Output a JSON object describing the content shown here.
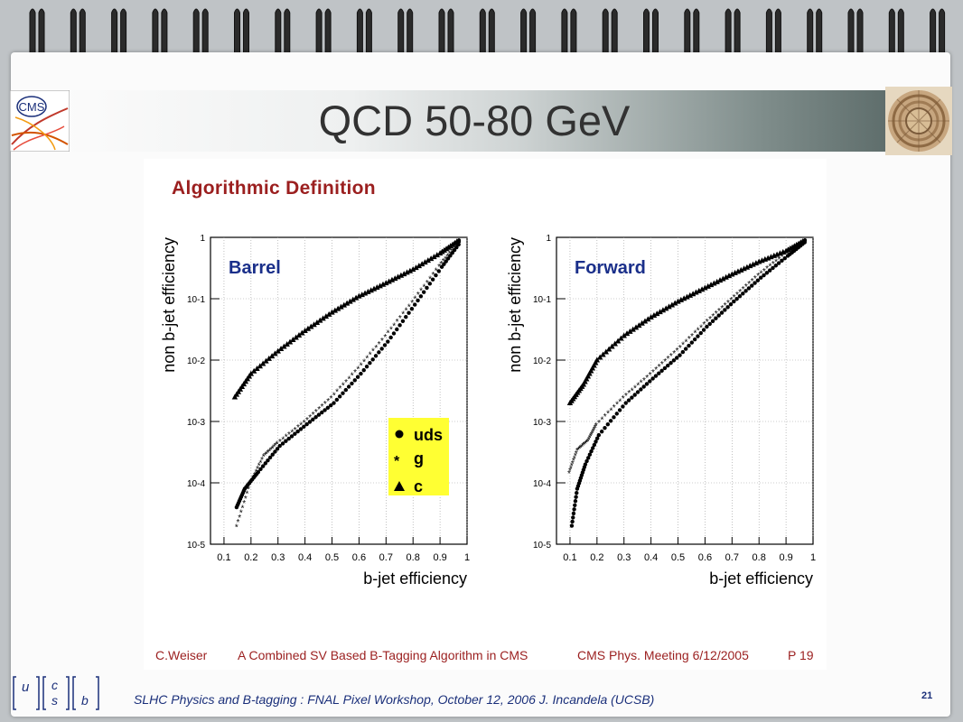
{
  "slide_title": "QCD 50-80 GeV",
  "heading": "Algorithmic Definition",
  "footer": {
    "author": "C.Weiser",
    "paper_title": "A Combined SV Based B-Tagging Algorithm in CMS",
    "meeting": "CMS Phys. Meeting 6/12/2005",
    "page": "P 19"
  },
  "bottom_text": "SLHC Physics and B-tagging : FNAL Pixel Workshop, October 12, 2006   J. Incandela (UCSB)",
  "slide_number": "21",
  "quark_symbols": {
    "u": "u",
    "c": "c",
    "s": "s",
    "b": "b"
  },
  "logo_text": "CMS",
  "legend": {
    "uds": "uds",
    "g": "g",
    "c": "c"
  },
  "chart_data": [
    {
      "type": "scatter",
      "panel_label": "Barrel",
      "xlabel": "b-jet efficiency",
      "ylabel": "non b-jet efficiency",
      "xlim": [
        0.05,
        1.0
      ],
      "ylim_log10": [
        -5,
        0
      ],
      "x_ticks": [
        "0.1",
        "0.2",
        "0.3",
        "0.4",
        "0.5",
        "0.6",
        "0.7",
        "0.8",
        "0.9",
        "1"
      ],
      "y_ticks": [
        "10-5",
        "10-4",
        "10-3",
        "10-2",
        "10-1",
        "1"
      ],
      "grid": true,
      "legend_position": "bottom-right",
      "series": [
        {
          "name": "c",
          "marker": "triangle",
          "x": [
            0.14,
            0.2,
            0.3,
            0.4,
            0.5,
            0.6,
            0.7,
            0.8,
            0.9,
            0.97
          ],
          "y": [
            0.0025,
            0.006,
            0.014,
            0.03,
            0.06,
            0.11,
            0.18,
            0.3,
            0.55,
            0.9
          ]
        },
        {
          "name": "g",
          "marker": "star",
          "x": [
            0.15,
            0.2,
            0.25,
            0.3,
            0.4,
            0.5,
            0.6,
            0.7,
            0.8,
            0.9,
            0.97
          ],
          "y": [
            2e-05,
            0.0001,
            0.00028,
            0.00045,
            0.001,
            0.0025,
            0.0075,
            0.025,
            0.09,
            0.35,
            0.85
          ]
        },
        {
          "name": "uds",
          "marker": "circle",
          "x": [
            0.14,
            0.17,
            0.22,
            0.3,
            0.4,
            0.5,
            0.6,
            0.7,
            0.8,
            0.9,
            0.97
          ],
          "y": [
            4e-05,
            8e-05,
            0.00015,
            0.0004,
            0.0009,
            0.002,
            0.006,
            0.02,
            0.08,
            0.33,
            0.85
          ]
        }
      ]
    },
    {
      "type": "scatter",
      "panel_label": "Forward",
      "xlabel": "b-jet efficiency",
      "ylabel": "non b-jet efficiency",
      "xlim": [
        0.05,
        1.0
      ],
      "ylim_log10": [
        -5,
        0
      ],
      "x_ticks": [
        "0.1",
        "0.2",
        "0.3",
        "0.4",
        "0.5",
        "0.6",
        "0.7",
        "0.8",
        "0.9",
        "1"
      ],
      "y_ticks": [
        "10-5",
        "10-4",
        "10-3",
        "10-2",
        "10-1",
        "1"
      ],
      "grid": true,
      "series": [
        {
          "name": "c",
          "marker": "triangle",
          "x": [
            0.1,
            0.15,
            0.2,
            0.3,
            0.4,
            0.5,
            0.6,
            0.7,
            0.8,
            0.9,
            0.97
          ],
          "y": [
            0.002,
            0.004,
            0.01,
            0.025,
            0.05,
            0.09,
            0.15,
            0.25,
            0.4,
            0.6,
            0.9
          ]
        },
        {
          "name": "g",
          "marker": "star",
          "x": [
            0.1,
            0.13,
            0.17,
            0.2,
            0.3,
            0.4,
            0.5,
            0.6,
            0.7,
            0.8,
            0.9,
            0.97
          ],
          "y": [
            0.00015,
            0.00035,
            0.0005,
            0.0009,
            0.0025,
            0.006,
            0.015,
            0.04,
            0.1,
            0.25,
            0.55,
            0.9
          ]
        },
        {
          "name": "uds",
          "marker": "circle",
          "x": [
            0.1,
            0.12,
            0.15,
            0.2,
            0.3,
            0.4,
            0.5,
            0.6,
            0.7,
            0.8,
            0.9,
            0.97
          ],
          "y": [
            2e-05,
            8e-05,
            0.0002,
            0.0006,
            0.002,
            0.005,
            0.012,
            0.035,
            0.09,
            0.22,
            0.5,
            0.88
          ]
        }
      ]
    }
  ]
}
